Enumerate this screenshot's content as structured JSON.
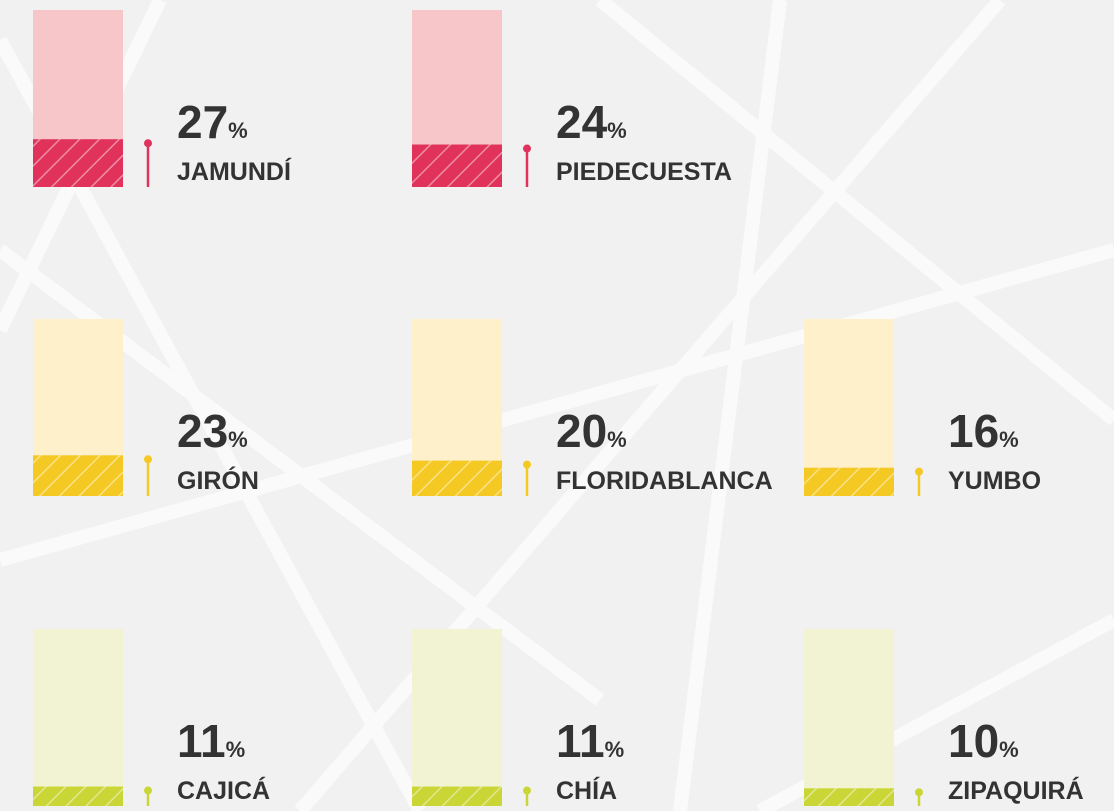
{
  "chart_data": {
    "type": "bar",
    "categories": [
      "JAMUNDÍ",
      "PIEDECUESTA",
      "GIRÓN",
      "FLORIDABLANCA",
      "YUMBO",
      "CAJICÁ",
      "CHÍA",
      "ZIPAQUIRÁ"
    ],
    "values": [
      27,
      24,
      23,
      20,
      16,
      11,
      11,
      10
    ],
    "value_labels": [
      "27%",
      "24%",
      "23%",
      "20%",
      "16%",
      "11%",
      "11%",
      "10%"
    ],
    "colors": [
      "#e0325a",
      "#e0325a",
      "#f5c924",
      "#f5c924",
      "#f5c924",
      "#c9d636",
      "#c9d636",
      "#c9d636"
    ],
    "track_colors": [
      "#f6c6c9",
      "#f6c6c9",
      "#fdf0cb",
      "#fdf0cb",
      "#fdf0cb",
      "#f1f3d2",
      "#f1f3d2",
      "#f1f3d2"
    ],
    "ylim": [
      0,
      100
    ]
  }
}
